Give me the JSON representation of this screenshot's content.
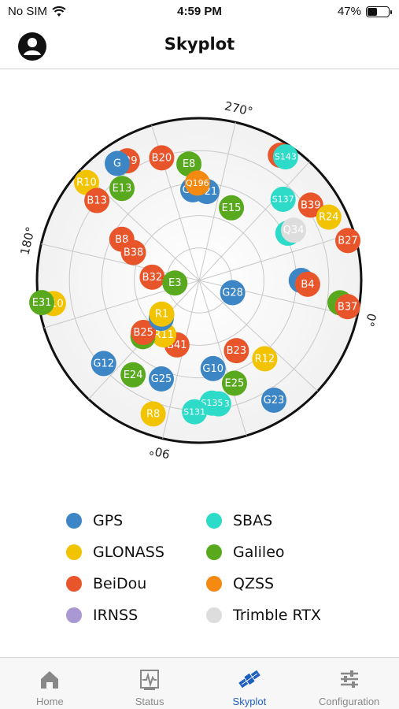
{
  "status_bar": {
    "carrier": "No SIM",
    "time": "4:59 PM",
    "battery_percent": "47%",
    "battery_level": 0.47
  },
  "header": {
    "title": "Skyplot"
  },
  "skyplot": {
    "azimuth_labels": [
      "0°",
      "90°",
      "180°",
      "270°"
    ],
    "satellites": [
      {
        "id": "B",
        "c": "beidou",
        "az": 290,
        "el": 0.08
      },
      {
        "id": "S143",
        "c": "sbas",
        "az": 292,
        "el": 0.07
      },
      {
        "id": "B39",
        "c": "beidou",
        "az": 313,
        "el": 0.17
      },
      {
        "id": "R24",
        "c": "glonass",
        "az": 321,
        "el": 0.11
      },
      {
        "id": "B27",
        "c": "beidou",
        "az": 332,
        "el": 0.05
      },
      {
        "id": "S137",
        "c": "sbas",
        "az": 303,
        "el": 0.28
      },
      {
        "id": "E8",
        "c": "galileo",
        "az": 252,
        "el": 0.28
      },
      {
        "id": "B20",
        "c": "beidou",
        "az": 240,
        "el": 0.21
      },
      {
        "id": "G21",
        "c": "gps",
        "az": 262,
        "el": 0.45
      },
      {
        "id": "G21",
        "c": "gps",
        "az": 253,
        "el": 0.44
      },
      {
        "id": "Q196",
        "c": "qzss",
        "az": 256,
        "el": 0.4
      },
      {
        "id": "S1",
        "c": "sbas",
        "az": 319,
        "el": 0.38
      },
      {
        "id": "Q34",
        "c": "trimble",
        "az": 319,
        "el": 0.34
      },
      {
        "id": "E15",
        "c": "galileo",
        "az": 281,
        "el": 0.51
      },
      {
        "id": "B29",
        "c": "beidou",
        "az": 226,
        "el": 0.14
      },
      {
        "id": "G",
        "c": "gps",
        "az": 222,
        "el": 0.12
      },
      {
        "id": "E13",
        "c": "galileo",
        "az": 217,
        "el": 0.26
      },
      {
        "id": "R10",
        "c": "glonass",
        "az": 208,
        "el": 0.08
      },
      {
        "id": "B13",
        "c": "beidou",
        "az": 205,
        "el": 0.2
      },
      {
        "id": "G",
        "c": "gps",
        "az": 347,
        "el": 0.37
      },
      {
        "id": "B4",
        "c": "beidou",
        "az": 349,
        "el": 0.33
      },
      {
        "id": "E",
        "c": "galileo",
        "az": 356,
        "el": 0.12
      },
      {
        "id": "B37",
        "c": "beidou",
        "az": 357,
        "el": 0.07
      },
      {
        "id": "B8",
        "c": "beidou",
        "az": 195,
        "el": 0.46
      },
      {
        "id": "B38",
        "c": "beidou",
        "az": 190,
        "el": 0.56
      },
      {
        "id": "B32",
        "c": "beidou",
        "az": 171,
        "el": 0.71
      },
      {
        "id": "E3",
        "c": "galileo",
        "az": 161,
        "el": 0.85
      },
      {
        "id": "G28",
        "c": "gps",
        "az": 7,
        "el": 0.78
      },
      {
        "id": "R12",
        "c": "glonass",
        "az": 37,
        "el": 0.37
      },
      {
        "id": "B23",
        "c": "beidou",
        "az": 49,
        "el": 0.51
      },
      {
        "id": "G10",
        "c": "gps",
        "az": 68,
        "el": 0.45
      },
      {
        "id": "E25",
        "c": "galileo",
        "az": 58,
        "el": 0.33
      },
      {
        "id": "G23",
        "c": "gps",
        "az": 45,
        "el": 0.13
      },
      {
        "id": "S133",
        "c": "sbas",
        "az": 68,
        "el": 0.23
      },
      {
        "id": "S135",
        "c": "sbas",
        "az": 71,
        "el": 0.24
      },
      {
        "id": "S131",
        "c": "sbas",
        "az": 79,
        "el": 0.19
      },
      {
        "id": "R8",
        "c": "glonass",
        "az": 96,
        "el": 0.13
      },
      {
        "id": "G25",
        "c": "gps",
        "az": 98,
        "el": 0.35
      },
      {
        "id": "E24",
        "c": "galileo",
        "az": 112,
        "el": 0.29
      },
      {
        "id": "G12",
        "c": "gps",
        "az": 126,
        "el": 0.22
      },
      {
        "id": "R10",
        "c": "glonass",
        "az": 158,
        "el": 0.09
      },
      {
        "id": "E31",
        "c": "galileo",
        "az": 159,
        "el": 0.02
      },
      {
        "id": "B41",
        "c": "beidou",
        "az": 96,
        "el": 0.58
      },
      {
        "id": "R11",
        "c": "glonass",
        "az": 110,
        "el": 0.6
      },
      {
        "id": "E",
        "c": "galileo",
        "az": 122,
        "el": 0.51
      },
      {
        "id": "B25",
        "c": "beidou",
        "az": 124,
        "el": 0.53
      },
      {
        "id": "G",
        "c": "gps",
        "az": 122,
        "el": 0.67
      },
      {
        "id": "R1",
        "c": "glonass",
        "az": 125,
        "el": 0.69
      }
    ]
  },
  "legend": [
    {
      "key": "gps",
      "label": "GPS"
    },
    {
      "key": "sbas",
      "label": "SBAS"
    },
    {
      "key": "glonass",
      "label": "GLONASS"
    },
    {
      "key": "galileo",
      "label": "Galileo"
    },
    {
      "key": "beidou",
      "label": "BeiDou"
    },
    {
      "key": "qzss",
      "label": "QZSS"
    },
    {
      "key": "irnss",
      "label": "IRNSS"
    },
    {
      "key": "trimble",
      "label": "Trimble RTX"
    }
  ],
  "colors": {
    "gps": "#3d86c6",
    "sbas": "#2ddbc8",
    "glonass": "#f2c300",
    "galileo": "#58a91d",
    "beidou": "#e8552b",
    "qzss": "#f48a12",
    "irnss": "#a998d4",
    "trimble": "#dddddd",
    "accent": "#1f5fbf"
  },
  "tabs": [
    {
      "key": "home",
      "label": "Home",
      "icon": "home-icon"
    },
    {
      "key": "status",
      "label": "Status",
      "icon": "status-icon"
    },
    {
      "key": "skyplot",
      "label": "Skyplot",
      "icon": "satellite-icon",
      "active": true
    },
    {
      "key": "configuration",
      "label": "Configuration",
      "icon": "sliders-icon"
    }
  ]
}
